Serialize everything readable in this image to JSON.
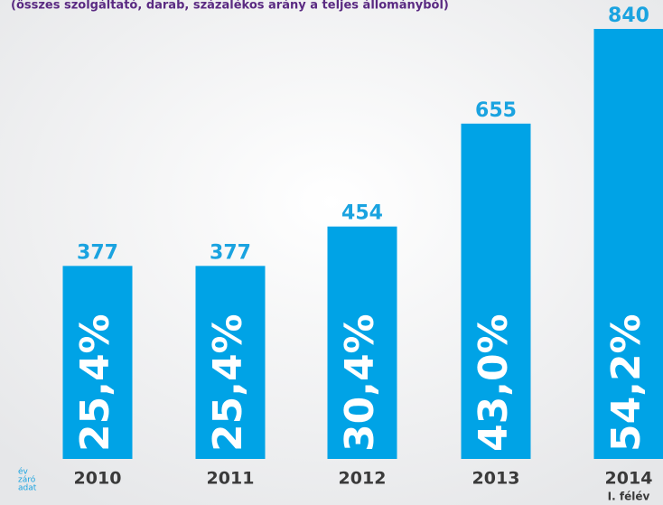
{
  "chart_data": {
    "type": "bar",
    "title": "(összes szolgáltató, darab, százalékos arány a teljes állományból)",
    "categories": [
      "2010",
      "2011",
      "2012",
      "2013",
      "2014"
    ],
    "category_notes": [
      null,
      null,
      null,
      null,
      "I. félév"
    ],
    "values": [
      377,
      377,
      454,
      655,
      840
    ],
    "share_values": [
      25.4,
      25.4,
      30.4,
      43.0,
      54.2
    ],
    "share_labels": [
      "25,4%",
      "25,4%",
      "30,4%",
      "43,0%",
      "54,2%"
    ],
    "note": [
      "év",
      "záró",
      "adat"
    ],
    "color": "#00a3e6",
    "label_color": "#1aa3e0",
    "title_color": "#5a2a82"
  }
}
